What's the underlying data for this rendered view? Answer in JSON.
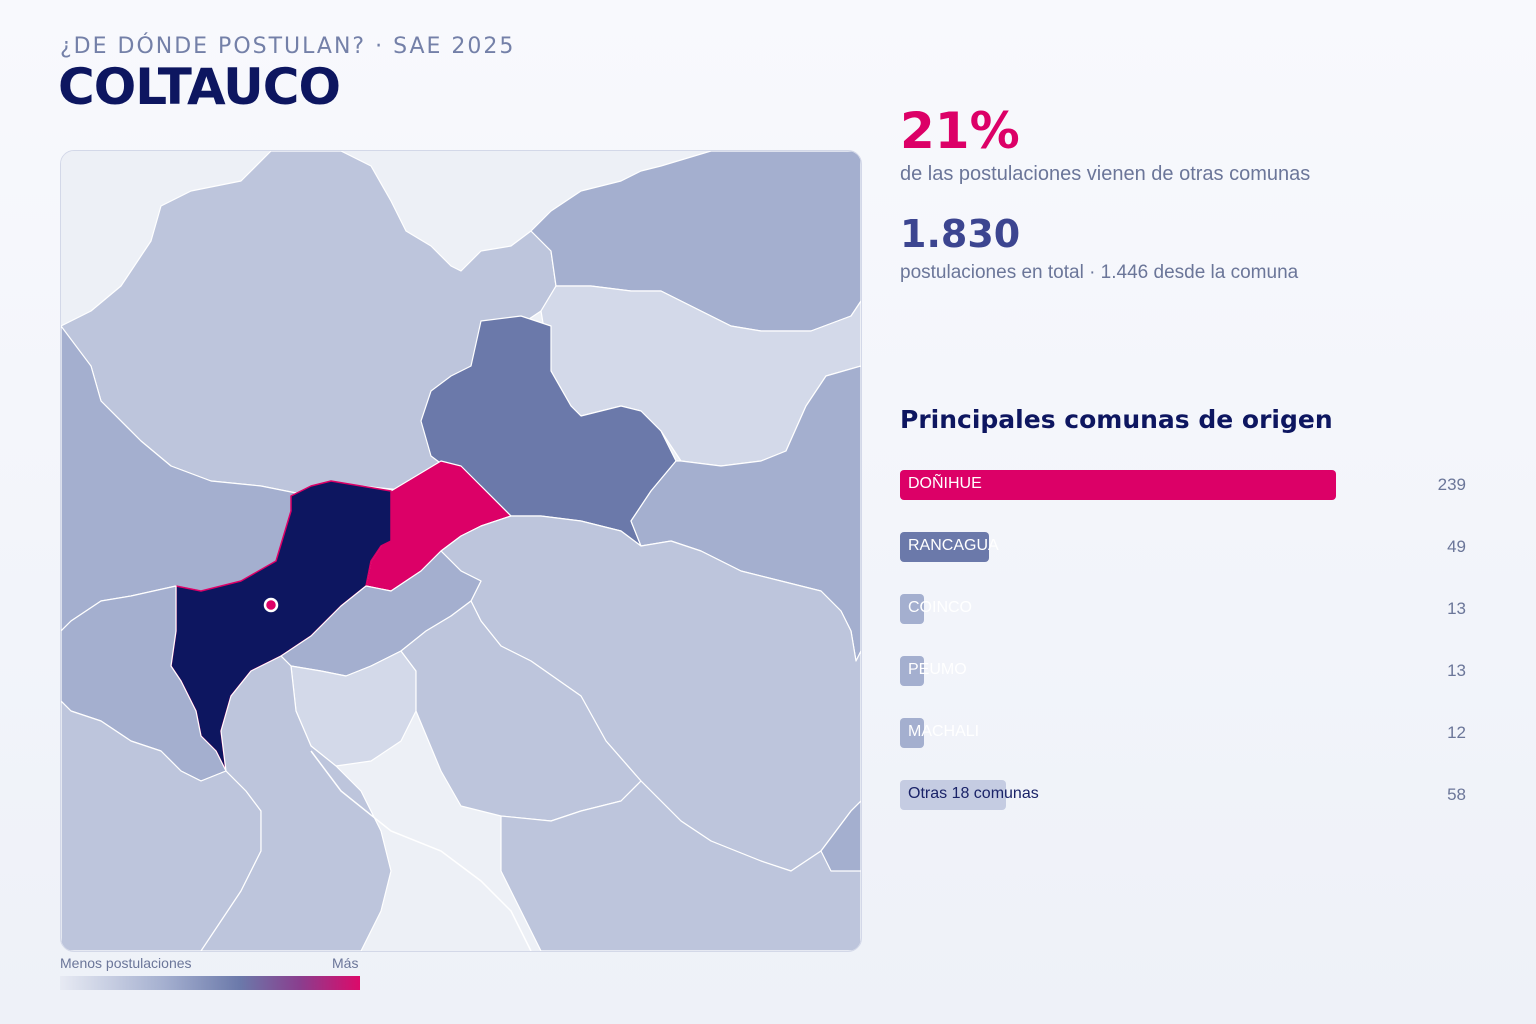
{
  "header": {
    "kicker": "¿DE DÓNDE POSTULAN? · SAE 2025",
    "title": "COLTAUCO"
  },
  "stats": {
    "external_pct": "21%",
    "external_desc": "de las postulaciones vienen de otras comunas",
    "total": "1.830",
    "total_desc": "postulaciones en total · 1.446 desde la comuna"
  },
  "list": {
    "title": "Principales comunas de origen",
    "max": 239,
    "items": [
      {
        "name": "DOÑIHUE",
        "value": 239,
        "value_label": "239",
        "color": "#dc0067",
        "text_color": "#ffffff"
      },
      {
        "name": "RANCAGUA",
        "value": 49,
        "value_label": "49",
        "color": "#6b79aa",
        "text_color": "#ffffff"
      },
      {
        "name": "COINCO",
        "value": 13,
        "value_label": "13",
        "color": "#a4afcf",
        "text_color": "#ffffff"
      },
      {
        "name": "PEUMO",
        "value": 13,
        "value_label": "13",
        "color": "#a4afcf",
        "text_color": "#ffffff"
      },
      {
        "name": "MACHALI",
        "value": 12,
        "value_label": "12",
        "color": "#a4afcf",
        "text_color": "#ffffff"
      },
      {
        "name": "Otras 18 comunas",
        "value": 58,
        "value_label": "58",
        "color": "#c5cce2",
        "text_color": "#1a2368"
      }
    ]
  },
  "legend": {
    "low_label": "Menos postulaciones",
    "high_label": "Más"
  },
  "map": {
    "colors": {
      "selected": "#0d1660",
      "top_origin": "#dc0067",
      "high": "#6b79aa",
      "mid": "#a4afcf",
      "low": "#bdc5dc",
      "lowest": "#d3d9e9",
      "none": "#edf0f6",
      "border": "#ffffff",
      "marker": "#dc0067"
    }
  }
}
